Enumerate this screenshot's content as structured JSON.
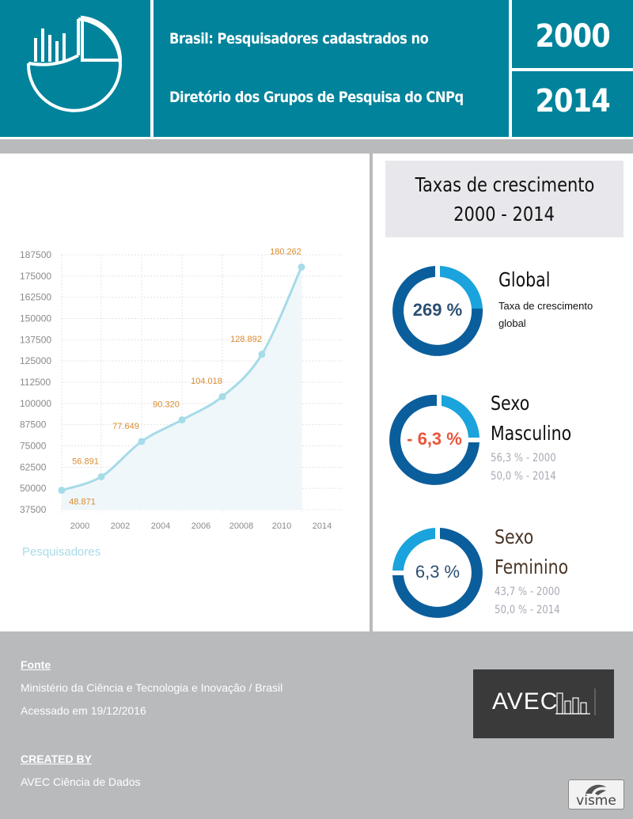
{
  "header": {
    "title_line1": "Brasil: Pesquisadores cadastrados no",
    "title_line2": "Diretório dos Grupos de Pesquisa do CNPq",
    "year_start": "2000",
    "year_end": "2014",
    "logo_icon": "pie-chart-bars-icon"
  },
  "chart_data": {
    "type": "area",
    "x": [
      "2000",
      "2002",
      "2004",
      "2006",
      "20008",
      "2010",
      "2014"
    ],
    "y_ticks": [
      "187500",
      "175000",
      "162500",
      "150000",
      "137500",
      "125000",
      "112500",
      "100000",
      "87500",
      "75000",
      "62500",
      "50000",
      "37500"
    ],
    "ylim": [
      37500,
      187500
    ],
    "values": [
      48871,
      56891,
      77649,
      90320,
      104018,
      128892,
      180262
    ],
    "data_labels": [
      "48.871",
      "56.891",
      "77.649",
      "90.320",
      "104.018",
      "128.892",
      "180.262"
    ],
    "series": [
      {
        "name": "Pesquisadores",
        "values": [
          48871,
          56891,
          77649,
          90320,
          104018,
          128892,
          180262
        ]
      }
    ],
    "legend": "Pesquisadores",
    "legend_position": "bottom-left",
    "grid": true,
    "line_color": "#a6dbe8",
    "label_color": "#d98a2e"
  },
  "growth": {
    "title_line1": "Taxas de crescimento",
    "title_line2": "2000 - 2014",
    "global": {
      "value": "269 %",
      "label": "Global",
      "desc_line1": "Taxa de crescimento",
      "desc_line2": "global"
    },
    "male": {
      "value": "- 6,3 %",
      "label_line1": "Sexo",
      "label_line2": "Masculino",
      "stat1": "56,3 % - 2000",
      "stat2": "50,0 % - 2014"
    },
    "female": {
      "value": "6,3 %",
      "label_line1": "Sexo",
      "label_line2": "Feminino",
      "stat1": "43,7 % - 2000",
      "stat2": "50,0 % - 2014"
    }
  },
  "footer": {
    "source_heading": "Fonte",
    "source_line1": "Ministério da Ciência e Tecnologia e Inovação / Brasil",
    "source_line2": "Acessado em 19/12/2016",
    "created_heading": "CREATED BY",
    "created_by": "AVEC Ciência de Dados",
    "avec_logo_text": "AVEC",
    "visme_text": "visme"
  },
  "colors": {
    "header_bg": "#00839b",
    "ring_dark": "#0b5e9c",
    "ring_light": "#1aa3dc",
    "negative": "#e8553a",
    "value_blue": "#2c4f72",
    "female_label": "#4a3628"
  }
}
